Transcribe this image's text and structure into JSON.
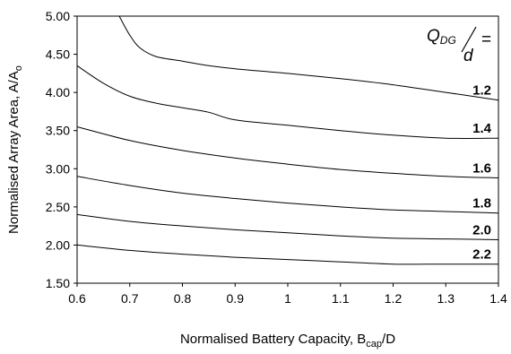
{
  "chart_data": {
    "type": "line",
    "xlabel": "Normalised Battery Capacity, B",
    "xlabel_sub": "cap",
    "xlabel_tail": "/D",
    "ylabel": "Normalised Array Area, A/A",
    "ylabel_sub": "o",
    "xlim": [
      0.6,
      1.4
    ],
    "ylim": [
      1.5,
      5.0
    ],
    "x_ticks": [
      "0.6",
      "0.7",
      "0.8",
      "0.9",
      "1",
      "1.1",
      "1.2",
      "1.3",
      "1.4"
    ],
    "y_ticks": [
      "1.50",
      "2.00",
      "2.50",
      "3.00",
      "3.50",
      "4.00",
      "4.50",
      "5.00"
    ],
    "grid": false,
    "legend_title": {
      "numerator": "Q",
      "numerator_sub": "DG",
      "denominator": "d",
      "suffix": "="
    },
    "series": [
      {
        "name": "1.2",
        "x": [
          0.68,
          0.7,
          0.72,
          0.75,
          0.8,
          0.85,
          0.9,
          1.0,
          1.1,
          1.2,
          1.3,
          1.4
        ],
        "y": [
          5.0,
          4.75,
          4.58,
          4.47,
          4.41,
          4.35,
          4.31,
          4.25,
          4.18,
          4.1,
          4.0,
          3.9
        ]
      },
      {
        "name": "1.4",
        "x": [
          0.6,
          0.65,
          0.7,
          0.75,
          0.8,
          0.85,
          0.9,
          1.0,
          1.1,
          1.2,
          1.3,
          1.4
        ],
        "y": [
          4.35,
          4.12,
          3.95,
          3.86,
          3.8,
          3.74,
          3.64,
          3.57,
          3.5,
          3.44,
          3.4,
          3.4
        ]
      },
      {
        "name": "1.6",
        "x": [
          0.6,
          0.7,
          0.8,
          0.9,
          1.0,
          1.1,
          1.2,
          1.3,
          1.4
        ],
        "y": [
          3.55,
          3.37,
          3.24,
          3.14,
          3.06,
          2.99,
          2.94,
          2.9,
          2.88
        ]
      },
      {
        "name": "1.8",
        "x": [
          0.6,
          0.7,
          0.8,
          0.9,
          1.0,
          1.1,
          1.2,
          1.3,
          1.4
        ],
        "y": [
          2.9,
          2.78,
          2.68,
          2.61,
          2.55,
          2.5,
          2.46,
          2.44,
          2.42
        ]
      },
      {
        "name": "2.0",
        "x": [
          0.6,
          0.7,
          0.8,
          0.9,
          1.0,
          1.1,
          1.2,
          1.3,
          1.4
        ],
        "y": [
          2.4,
          2.31,
          2.25,
          2.2,
          2.16,
          2.12,
          2.09,
          2.08,
          2.07
        ]
      },
      {
        "name": "2.2",
        "x": [
          0.6,
          0.7,
          0.8,
          0.9,
          1.0,
          1.1,
          1.2,
          1.3,
          1.4
        ],
        "y": [
          2.0,
          1.93,
          1.88,
          1.84,
          1.81,
          1.78,
          1.75,
          1.75,
          1.75
        ]
      }
    ]
  }
}
